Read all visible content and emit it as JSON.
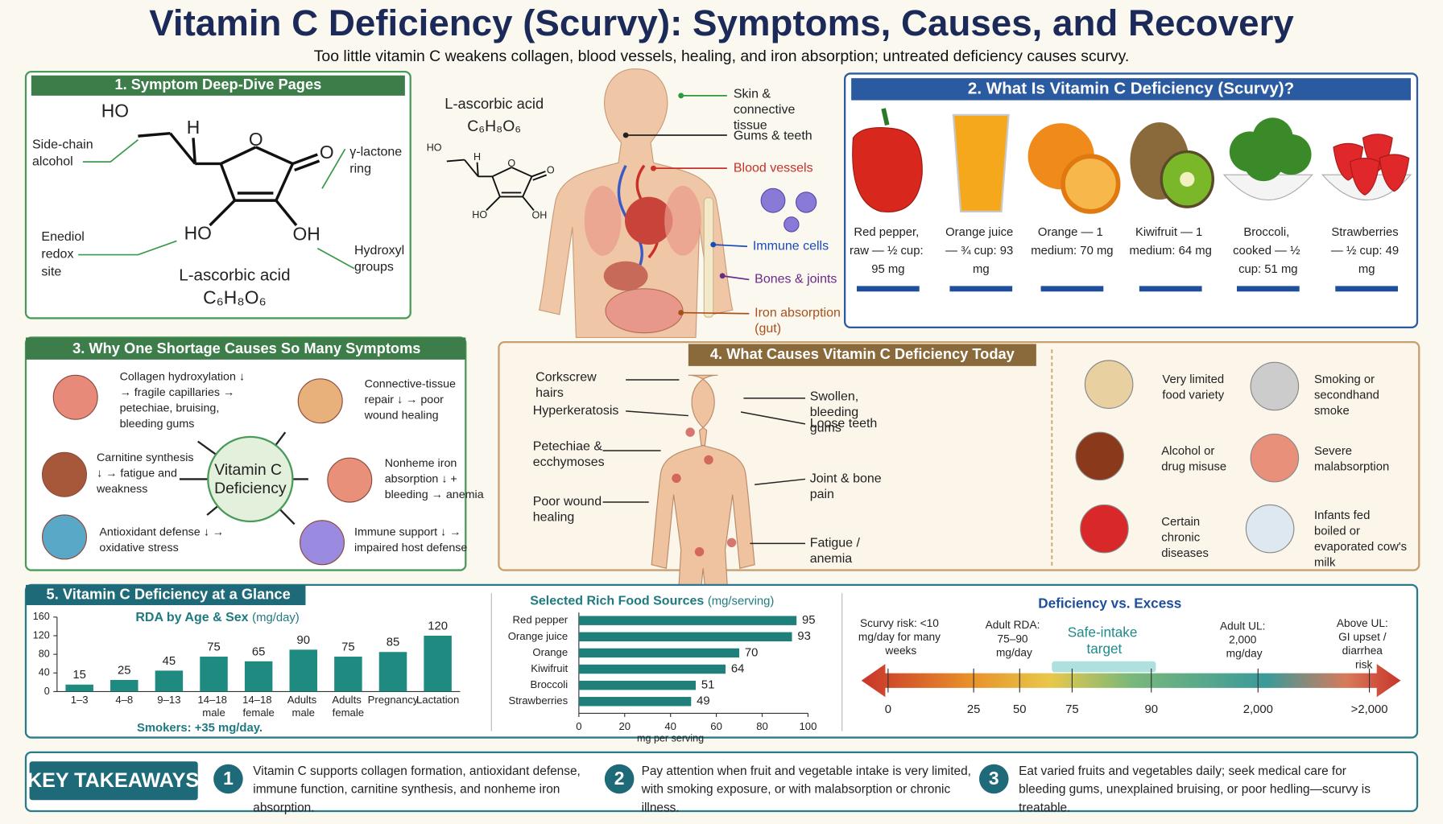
{
  "header": {
    "title": "Vitamin C Deficiency (Scurvy): Symptoms, Causes, and Recovery",
    "subtitle": "Too little vitamin C weakens collagen, blood vessels, healing, and iron absorption; untreated deficiency causes scurvy."
  },
  "molecule": {
    "title": "1. Symptom Deep-Dive Pages",
    "atoms": [
      "HO",
      "H",
      "O",
      "O",
      "HO",
      "OH"
    ],
    "name": "L-ascorbic acid",
    "formula": "C₆H₈O₆",
    "notes": [
      "Side-chain alcohol",
      "γ-lactone ring",
      "Enediol redox site",
      "Hydroxyl groups"
    ]
  },
  "body": {
    "labels": [
      "Skin & connective tissue",
      "Gums & teeth",
      "Blood vessels",
      "Immune cells",
      "Bones & joints",
      "Iron absorption (gut)"
    ]
  },
  "sources": {
    "title": "2. What Is Vitamin C Deficiency (Scurvy)?",
    "foods": [
      "Red pepper, raw — ½ cup: 95 mg",
      "Orange juice — ¾ cup: 93 mg",
      "Orange — 1 medium: 70 mg",
      "Kiwifruit — 1 medium: 64 mg",
      "Broccoli, cooked — ½ cup: 51 mg",
      "Strawberries — ½ cup: 49 mg"
    ]
  },
  "mechanisms": {
    "title": "3. Why One Shortage Causes So Many Symptoms",
    "center": "Vitamin C Deficiency",
    "effects": [
      "Collagen hydroxylation ↓ → fragile capillaries → petechiae, bruising, bleeding gums",
      "Connective-tissue repair ↓ → poor wound healing",
      "Carnitine synthesis ↓ → fatigue and weakness",
      "Nonheme iron absorption ↓ + bleeding → anemia",
      "Antioxidant defense ↓ → oxidative stress",
      "Immune support ↓ → impaired host defense"
    ]
  },
  "causes": {
    "title": "4. What Causes Vitamin C Deficiency Today",
    "symptoms": [
      "Corkscrew hairs",
      "Hyperkeratosis",
      "Petechiae & ecchymoses",
      "Poor wound healing",
      "Swollen, bleeding gums",
      "Loose teeth",
      "Joint & bone pain",
      "Fatigue / anemia"
    ],
    "factors": [
      "Very limited food variety",
      "Smoking or secondhand smoke",
      "Alcohol or drug misuse",
      "Severe malabsorption",
      "Certain chronic diseases",
      "Infants fed boiled or evaporated cow's milk"
    ]
  },
  "glance": {
    "title": "5. Vitamin C Deficiency at a Glance"
  },
  "chart_data": [
    {
      "type": "bar",
      "title": "RDA by Age & Sex",
      "unit": "(mg/day)",
      "categories": [
        "1–3",
        "4–8",
        "9–13",
        "14–18 male",
        "14–18 female",
        "Adults male",
        "Adults female",
        "Pregnancy",
        "Lactation"
      ],
      "values": [
        15,
        25,
        45,
        75,
        65,
        90,
        75,
        85,
        120
      ],
      "color": "#1f8a80",
      "ylim": [
        0,
        160
      ],
      "yticks": [
        0,
        40,
        80,
        120,
        160
      ],
      "note": "Smokers: +35 mg/day."
    },
    {
      "type": "hbar",
      "title": "Selected Rich Food Sources",
      "unit": "(mg/serving)",
      "categories": [
        "Red pepper",
        "Orange juice",
        "Orange",
        "Kiwifruit",
        "Broccoli",
        "Strawberries"
      ],
      "values": [
        95,
        93,
        70,
        64,
        51,
        49
      ],
      "color": "#1f7f7a",
      "xlim": [
        0,
        100
      ],
      "xticks": [
        0,
        20,
        40,
        60,
        80,
        100
      ],
      "xlabel": "mg per serving"
    }
  ],
  "scale": {
    "title": "Deficiency vs. Excess",
    "notes": [
      "Scurvy risk: <10 mg/day for many weeks",
      "Adult RDA: 75–90 mg/day",
      "Safe-intake target",
      "Adult UL: 2,000 mg/day",
      "Above UL: GI upset / diarrhea risk"
    ],
    "ticks": [
      "0",
      "25",
      "50",
      "75",
      "90",
      "2,000",
      ">2,000"
    ]
  },
  "takeaways": {
    "title": "KEY TAKEAWAYS",
    "items": [
      {
        "number": "1",
        "text": "Vitamin C supports collagen formation, antioxidant defense, immune function, carnitine synthesis, and nonheme iron absorption."
      },
      {
        "number": "2",
        "text": "Pay attention when fruit and vegetable intake is very limited, with smoking exposure, or with malabsorption or chronic illness."
      },
      {
        "number": "3",
        "text": "Eat varied fruits and vegetables daily; seek medical care for bleeding gums, unexplained bruising, or poor hedling—scurvy is treatable."
      }
    ]
  }
}
